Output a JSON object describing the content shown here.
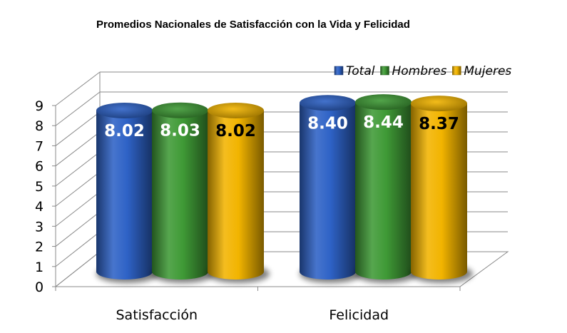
{
  "chart_data": {
    "type": "bar",
    "title": "Promedios Nacionales de Satisfacción con la Vida y Felicidad",
    "categories": [
      "Satisfacción",
      "Felicidad"
    ],
    "series": [
      {
        "name": "Total",
        "values": [
          8.02,
          8.4
        ],
        "color": "#2e62c6",
        "label_color": "#ffffff",
        "labels": [
          "8.02",
          "8.40"
        ]
      },
      {
        "name": "Hombres",
        "values": [
          8.03,
          8.44
        ],
        "color": "#3f9a36",
        "label_color": "#ffffff",
        "labels": [
          "8.03",
          "8.44"
        ]
      },
      {
        "name": "Mujeres",
        "values": [
          8.02,
          8.37
        ],
        "color": "#f2b400",
        "label_color": "#000000",
        "labels": [
          "8.02",
          "8.37"
        ]
      }
    ],
    "y_ticks": [
      "0",
      "1",
      "2",
      "3",
      "4",
      "5",
      "6",
      "7",
      "8",
      "9"
    ],
    "ylim": [
      0,
      9
    ],
    "grid": true,
    "legend_position": "top-right",
    "style": "3d-cylinder"
  }
}
